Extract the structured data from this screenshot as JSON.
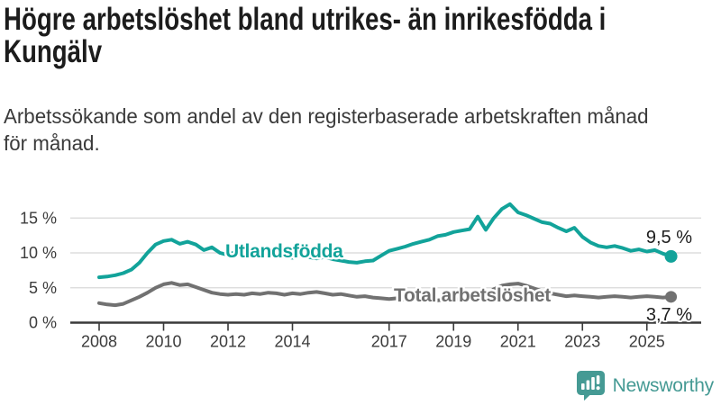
{
  "header": {
    "title_lines": [
      "Högre arbetslöshet bland utrikes- än inrikesfödda i",
      "Kungälv"
    ],
    "subtitle_lines": [
      "Arbetssökande som andel av den registerbaserade arbetskraften månad",
      "för månad."
    ]
  },
  "chart_data": {
    "type": "line",
    "title": "Högre arbetslöshet bland utrikes- än inrikesfödda i Kungälv",
    "subtitle": "Arbetssökande som andel av den registerbaserade arbetskraften månad för månad.",
    "x_unit": "decimal_year_monthly_share_of_labour_force",
    "xlim": [
      2008,
      2026
    ],
    "ylim": [
      0,
      18
    ],
    "grid": "horizontal",
    "grid_color": "#d8d8d8",
    "axis_color": "#3a3a3a",
    "tick_label_color": "#3c3c3c",
    "value_label_color": "#1d1d1d",
    "y_ticks": [
      {
        "value": 0,
        "label": "0 %"
      },
      {
        "value": 5,
        "label": "5 %"
      },
      {
        "value": 10,
        "label": "10 %"
      },
      {
        "value": 15,
        "label": "15 %"
      }
    ],
    "x_ticks": [
      {
        "value": 2008,
        "label": "2008"
      },
      {
        "value": 2010,
        "label": "2010"
      },
      {
        "value": 2012,
        "label": "2012"
      },
      {
        "value": 2014,
        "label": "2014"
      },
      {
        "value": 2017,
        "label": "2017"
      },
      {
        "value": 2019,
        "label": "2019"
      },
      {
        "value": 2021,
        "label": "2021"
      },
      {
        "value": 2023,
        "label": "2023"
      },
      {
        "value": 2025,
        "label": "2025"
      }
    ],
    "x": [
      2008,
      2008.25,
      2008.5,
      2008.75,
      2009,
      2009.25,
      2009.5,
      2009.75,
      2010,
      2010.25,
      2010.5,
      2010.75,
      2011,
      2011.25,
      2011.5,
      2011.75,
      2012,
      2012.25,
      2012.5,
      2012.75,
      2013,
      2013.25,
      2013.5,
      2013.75,
      2014,
      2014.25,
      2014.5,
      2014.75,
      2015,
      2015.25,
      2015.5,
      2015.75,
      2016,
      2016.25,
      2016.5,
      2016.75,
      2017,
      2017.25,
      2017.5,
      2017.75,
      2018,
      2018.25,
      2018.5,
      2018.75,
      2019,
      2019.25,
      2019.5,
      2019.75,
      2020,
      2020.25,
      2020.5,
      2020.75,
      2021,
      2021.25,
      2021.5,
      2021.75,
      2022,
      2022.25,
      2022.5,
      2022.75,
      2023,
      2023.25,
      2023.5,
      2023.75,
      2024,
      2024.25,
      2024.5,
      2024.75,
      2025,
      2025.25,
      2025.5,
      2025.75
    ],
    "series": [
      {
        "name": "Utlandsfödda",
        "color": "#12a39a",
        "end_label": "9,5 %",
        "end_value": 9.5,
        "values": [
          6.5,
          6.6,
          6.8,
          7.1,
          7.6,
          8.6,
          10.0,
          11.2,
          11.7,
          11.9,
          11.3,
          11.6,
          11.2,
          10.4,
          10.8,
          10.0,
          9.7,
          10.2,
          9.6,
          9.9,
          9.6,
          9.4,
          9.8,
          9.5,
          9.3,
          9.6,
          9.4,
          9.2,
          9.4,
          9.1,
          8.9,
          8.7,
          8.6,
          8.8,
          8.9,
          9.6,
          10.3,
          10.6,
          10.9,
          11.3,
          11.6,
          11.9,
          12.4,
          12.6,
          13.0,
          13.2,
          13.4,
          15.2,
          13.3,
          15.0,
          16.3,
          17.0,
          15.8,
          15.4,
          14.9,
          14.4,
          14.2,
          13.6,
          13.1,
          13.6,
          12.3,
          11.5,
          11.0,
          10.8,
          11.0,
          10.7,
          10.3,
          10.5,
          10.2,
          10.4,
          9.9,
          9.5
        ]
      },
      {
        "name": "Total arbetslöshet",
        "color": "#717171",
        "end_label": "3,7 %",
        "end_value": 3.7,
        "values": [
          2.8,
          2.6,
          2.5,
          2.7,
          3.2,
          3.7,
          4.3,
          5.0,
          5.5,
          5.7,
          5.4,
          5.5,
          5.1,
          4.7,
          4.3,
          4.1,
          4.0,
          4.1,
          4.0,
          4.2,
          4.1,
          4.3,
          4.2,
          4.0,
          4.2,
          4.1,
          4.3,
          4.4,
          4.2,
          4.0,
          4.1,
          3.9,
          3.7,
          3.8,
          3.6,
          3.5,
          3.4,
          3.5,
          3.3,
          3.4,
          3.2,
          3.3,
          3.2,
          3.3,
          3.3,
          3.4,
          3.5,
          3.6,
          3.8,
          4.8,
          5.3,
          5.5,
          5.6,
          5.3,
          4.9,
          4.5,
          4.2,
          4.0,
          3.8,
          3.9,
          3.8,
          3.7,
          3.6,
          3.7,
          3.8,
          3.7,
          3.6,
          3.7,
          3.8,
          3.7,
          3.6,
          3.7
        ]
      }
    ]
  },
  "footer": {
    "brand": "Newsworthy",
    "brand_color": "#459a94",
    "icon": "newsworthy-bubble-chart-icon"
  }
}
